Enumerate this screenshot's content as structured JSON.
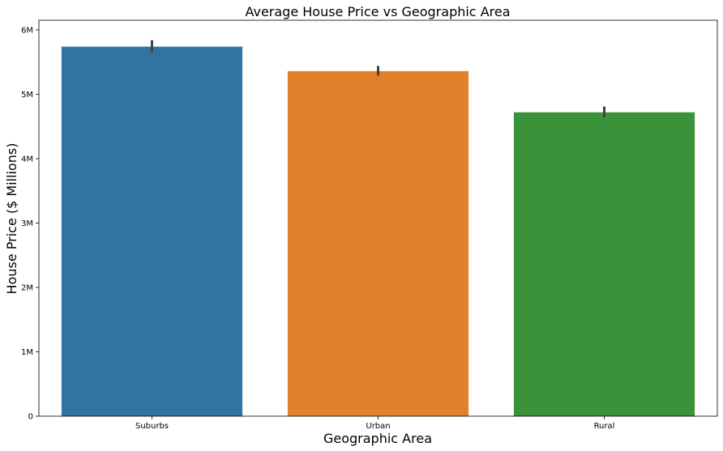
{
  "chart_data": {
    "type": "bar",
    "title": "Average House Price vs Geographic Area",
    "xlabel": "Geographic Area",
    "ylabel": "House Price ($ Millions)",
    "categories": [
      "Suburbs",
      "Urban",
      "Rural"
    ],
    "values": [
      5.74,
      5.36,
      4.72
    ],
    "error_low": [
      5.65,
      5.29,
      4.64
    ],
    "error_high": [
      5.84,
      5.44,
      4.81
    ],
    "colors": [
      "#3274a1",
      "#e1812c",
      "#3a923a"
    ],
    "error_color": "#424242",
    "ylim": [
      0,
      6.15
    ],
    "yticks": [
      {
        "value": 0,
        "label": "0"
      },
      {
        "value": 1,
        "label": "1M"
      },
      {
        "value": 2,
        "label": "2M"
      },
      {
        "value": 3,
        "label": "3M"
      },
      {
        "value": 4,
        "label": "4M"
      },
      {
        "value": 5,
        "label": "5M"
      },
      {
        "value": 6,
        "label": "6M"
      }
    ],
    "grid": false,
    "legend": "none"
  }
}
